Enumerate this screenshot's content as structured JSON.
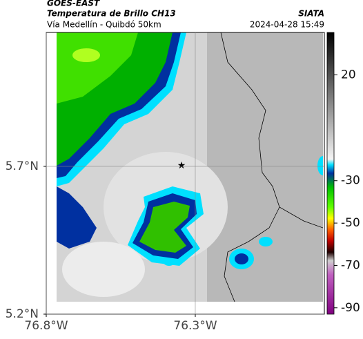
{
  "header": {
    "satellite": "GOES-EAST",
    "product": "Temperatura de Brillo CH13",
    "source": "SIATA",
    "location": "Vía Medellín - Quibdó 50km",
    "datetime": "2024-04-28 15:49"
  },
  "map": {
    "xlim": [
      -76.8,
      -75.867
    ],
    "ylim": [
      5.2,
      6.153
    ],
    "xticks": [
      {
        "value": -76.8,
        "label": "76.8°W"
      },
      {
        "value": -76.3,
        "label": "76.3°W"
      }
    ],
    "yticks": [
      {
        "value": 5.7,
        "label": "5.7°N"
      },
      {
        "value": 5.2,
        "label": "5.2°N"
      }
    ],
    "grid": true
  },
  "colorbar": {
    "clim": [
      40,
      -93
    ],
    "ticks": [
      20,
      -30,
      -50,
      -70,
      -90
    ]
  }
}
